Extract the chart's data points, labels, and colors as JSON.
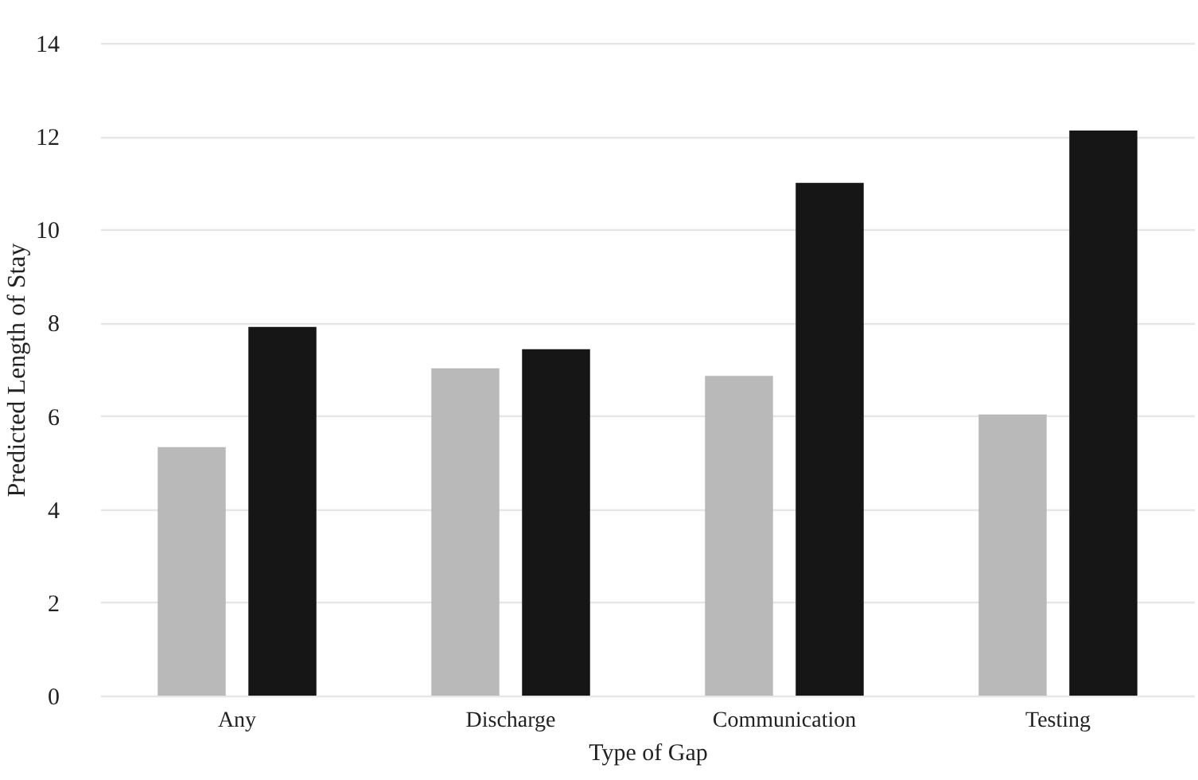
{
  "chart_data": {
    "type": "bar",
    "xlabel": "Type of Gap",
    "ylabel": "Predicted Length of Stay",
    "categories": [
      "Any",
      "Discharge",
      "Communication",
      "Testing"
    ],
    "series": [
      {
        "color": "#b9b9b9",
        "values": [
          5.33,
          7.02,
          6.86,
          6.03
        ]
      },
      {
        "color": "#161616",
        "values": [
          7.91,
          7.43,
          11.0,
          12.12
        ]
      }
    ],
    "ylim": [
      0,
      14
    ],
    "yticks": [
      0,
      2,
      4,
      6,
      8,
      10,
      12,
      14
    ],
    "grid": "y"
  }
}
